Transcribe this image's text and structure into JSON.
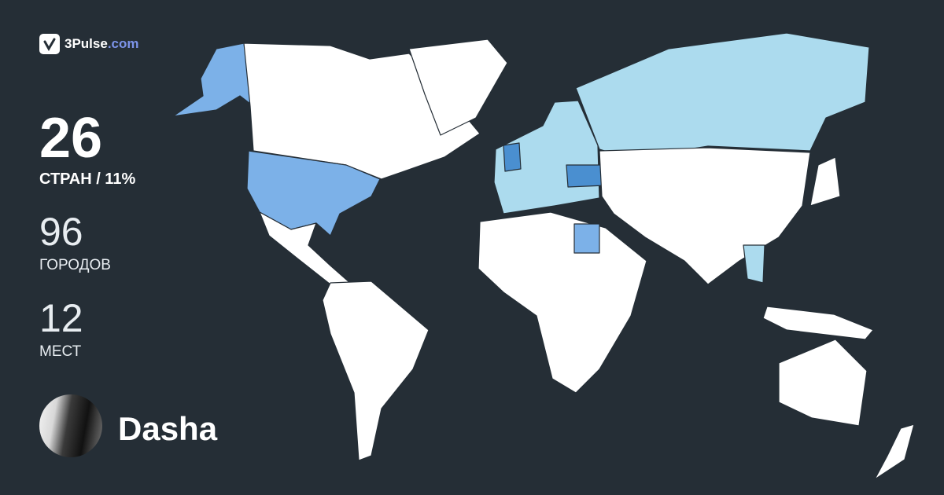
{
  "brand": {
    "name": "3Pulse",
    "tld": ".com"
  },
  "stats": {
    "countries": {
      "value": "26",
      "label": "СТРАН / 11%"
    },
    "cities": {
      "value": "96",
      "label": "ГОРОДОВ"
    },
    "places": {
      "value": "12",
      "label": "МЕСТ"
    }
  },
  "user": {
    "name": "Dasha"
  },
  "colors": {
    "background": "#252e36",
    "unvisited": "#ffffff",
    "visited_light": "#acdbee",
    "visited_medium": "#7cb1e8",
    "visited_dark": "#4a8fd0",
    "brand_accent": "#7c93e8"
  }
}
